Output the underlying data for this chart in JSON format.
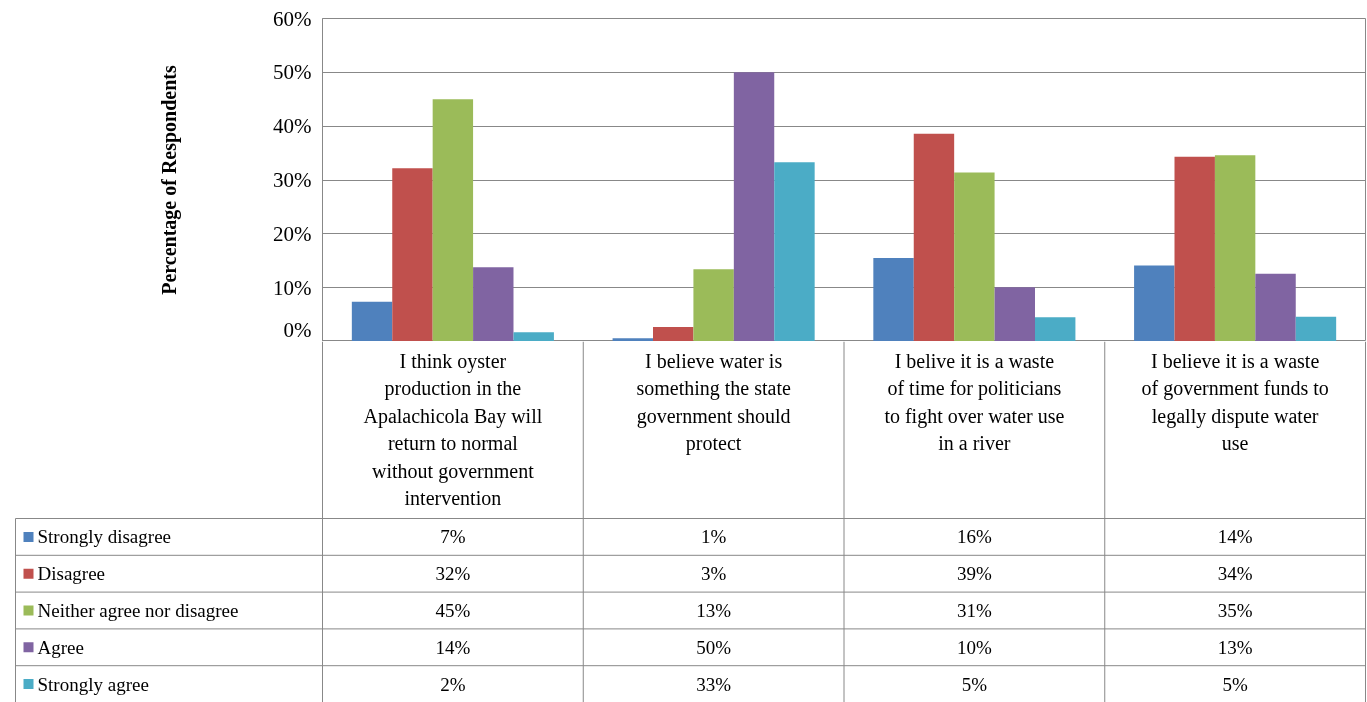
{
  "chart_data": {
    "type": "bar",
    "ylabel": "Percentage of Respondents",
    "categories": [
      "I think oyster production in the Apalachicola Bay will return to normal without government intervention",
      "I believe water is something the state government should protect",
      "I belive it is a waste of time for politicians to fight over water use in a river",
      "I believe it is a waste of government funds to legally dispute water use"
    ],
    "series": [
      {
        "name": "Strongly disagree",
        "color": "#4f81bd",
        "values": [
          7.4,
          0.6,
          15.5,
          14.1
        ],
        "value_labels": [
          "7%",
          "1%",
          "16%",
          "14%"
        ]
      },
      {
        "name": "Disagree",
        "color": "#c0504d",
        "values": [
          32.2,
          2.7,
          38.6,
          34.3
        ],
        "value_labels": [
          "32%",
          "3%",
          "39%",
          "34%"
        ]
      },
      {
        "name": "Neither agree nor disagree",
        "color": "#9bbb59",
        "values": [
          45,
          13.4,
          31.4,
          34.6
        ],
        "value_labels": [
          "45%",
          "13%",
          "31%",
          "35%"
        ]
      },
      {
        "name": "Agree",
        "color": "#8064a2",
        "values": [
          13.8,
          50,
          10.1,
          12.6
        ],
        "value_labels": [
          "14%",
          "50%",
          "10%",
          "13%"
        ]
      },
      {
        "name": "Strongly agree",
        "color": "#4bacc6",
        "values": [
          1.7,
          33.3,
          4.5,
          4.6
        ],
        "value_labels": [
          "2%",
          "33%",
          "5%",
          "5%"
        ]
      }
    ],
    "ylim": [
      0,
      60
    ],
    "yticks": [
      {
        "value": 0,
        "label": "0%"
      },
      {
        "value": 10,
        "label": "10%"
      },
      {
        "value": 20,
        "label": "20%"
      },
      {
        "value": 30,
        "label": "30%"
      },
      {
        "value": 40,
        "label": "40%"
      },
      {
        "value": 50,
        "label": "50%"
      },
      {
        "value": 60,
        "label": "60%"
      }
    ],
    "grid": "y",
    "legend": "bottom left"
  }
}
